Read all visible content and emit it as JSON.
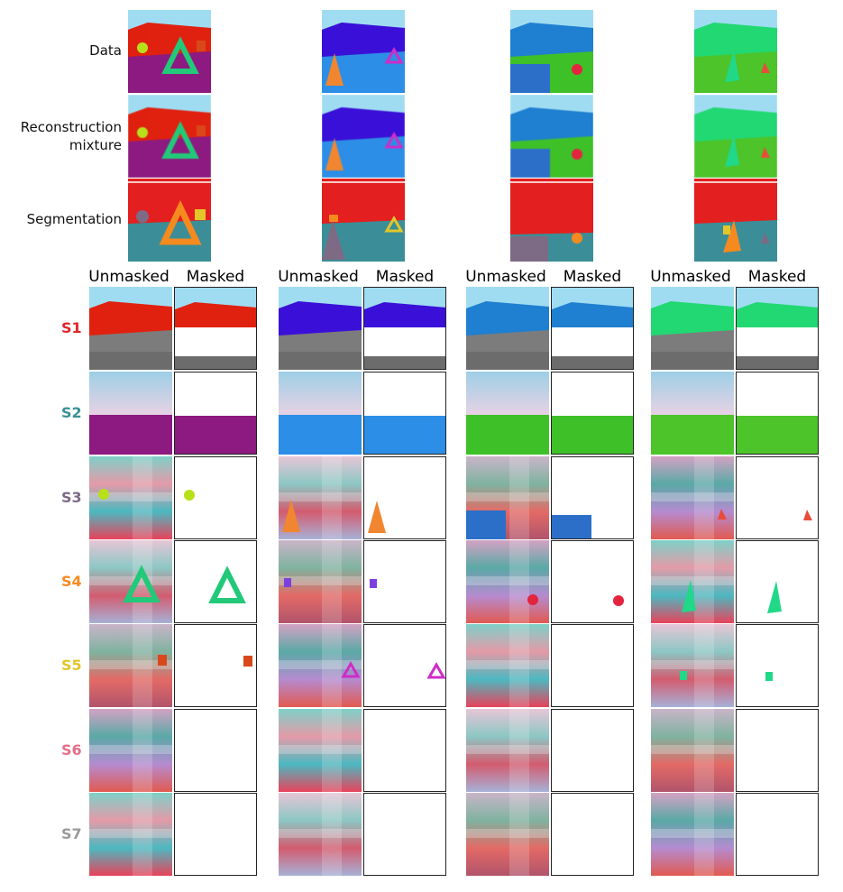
{
  "row_labels": {
    "data": "Data",
    "reconstruction": "Reconstruction\nmixture",
    "reconstruction_line1": "Reconstruction",
    "reconstruction_line2": "mixture",
    "segmentation": "Segmentation"
  },
  "column_headers": {
    "unmasked": "Unmasked",
    "masked": "Masked"
  },
  "slots": [
    {
      "label": "S1",
      "color": "#e0262b"
    },
    {
      "label": "S2",
      "color": "#3a8f96"
    },
    {
      "label": "S3",
      "color": "#7d6a85"
    },
    {
      "label": "S4",
      "color": "#f58a1f"
    },
    {
      "label": "S5",
      "color": "#e2c62a"
    },
    {
      "label": "S6",
      "color": "#e2708a"
    },
    {
      "label": "S7",
      "color": "#9a9a9a"
    }
  ],
  "scenes": [
    {
      "wall": "#e1200f",
      "floor": "#9a1a86",
      "object_main": "triangle-green",
      "colors": {
        "sky": "#9fdcf2",
        "wall": "#e0210f",
        "floor": "#8c1a80"
      }
    },
    {
      "wall": "#3514d6",
      "floor": "#2f8fe8",
      "object_main": "wedge-orange",
      "colors": {
        "sky": "#9fdcf2",
        "wall": "#3a10d8",
        "floor": "#2c8ee6"
      }
    },
    {
      "wall": "#1b7fcf",
      "floor": "#2a6fc9",
      "object_main": "sphere-red",
      "colors": {
        "sky": "#9fdcf2",
        "wall": "#1f7fd0",
        "floor": "#3ec028"
      }
    },
    {
      "wall": "#1fd46c",
      "floor": "#4ec62d",
      "object_main": "cone-green",
      "colors": {
        "sky": "#9fdcf2",
        "wall": "#22d872",
        "floor": "#4cc42a"
      }
    }
  ],
  "segmentation_colors": {
    "background": "#e31f1f",
    "floor": "#3b8e97"
  }
}
